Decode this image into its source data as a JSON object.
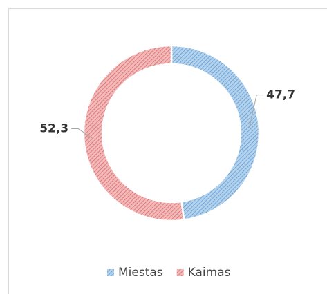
{
  "chart_data": {
    "type": "donut",
    "categories": [
      "Miestas",
      "Kaimas"
    ],
    "values": [
      47.7,
      52.3
    ],
    "value_labels": [
      "47,7",
      "52,3"
    ],
    "colors": [
      "#5b9bd5",
      "#e06666"
    ],
    "legend": "bottom"
  }
}
